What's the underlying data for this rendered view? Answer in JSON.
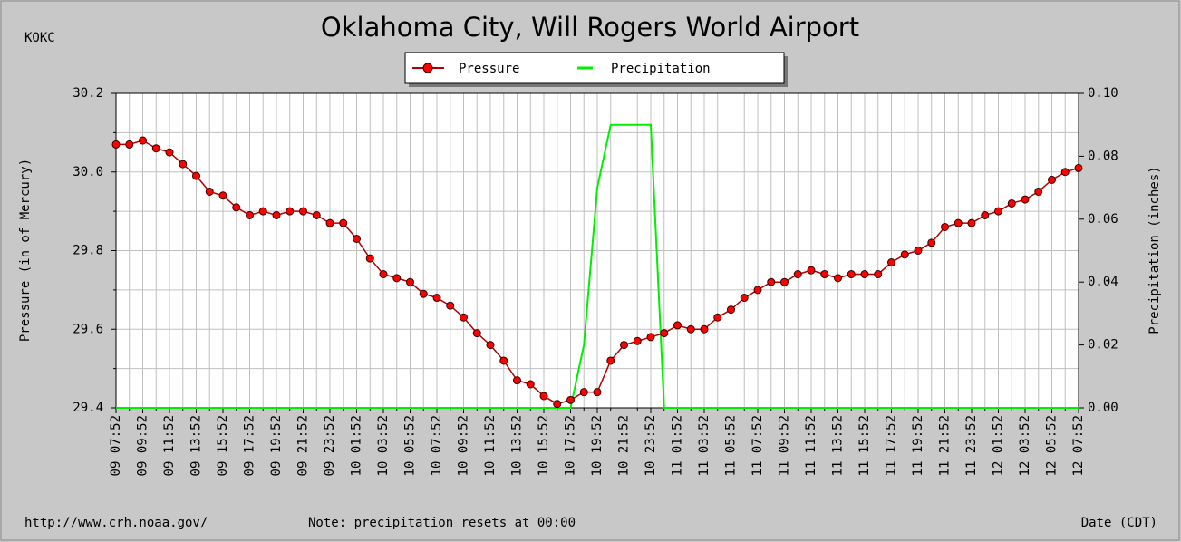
{
  "station": "KOKC",
  "footer": {
    "url": "http://www.crh.noaa.gov/",
    "note": "Note: precipitation resets at 00:00"
  },
  "chart_data": {
    "type": "line",
    "title": "Oklahoma City, Will Rogers World Airport",
    "x_label": "Date (CDT)",
    "y_label": "Pressure (in of Mercury)",
    "y2_label": "Precipitation (inches)",
    "categories": [
      "09 07:52",
      null,
      "09 09:52",
      null,
      "09 11:52",
      null,
      "09 13:52",
      null,
      "09 15:52",
      null,
      "09 17:52",
      null,
      "09 19:52",
      null,
      "09 21:52",
      null,
      "09 23:52",
      null,
      "10 01:52",
      null,
      "10 03:52",
      null,
      "10 05:52",
      null,
      "10 07:52",
      null,
      "10 09:52",
      null,
      "10 11:52",
      null,
      "10 13:52",
      null,
      "10 15:52",
      null,
      "10 17:52",
      null,
      "10 19:52",
      null,
      "10 21:52",
      null,
      "10 23:52",
      null,
      "11 01:52",
      null,
      "11 03:52",
      null,
      "11 05:52",
      null,
      "11 07:52",
      null,
      "11 09:52",
      null,
      "11 11:52",
      null,
      "11 13:52",
      null,
      "11 15:52",
      null,
      "11 17:52",
      null,
      "11 19:52",
      null,
      "11 21:52",
      null,
      "11 23:52",
      null,
      "12 01:52",
      null,
      "12 03:52",
      null,
      "12 05:52",
      null,
      "12 07:52"
    ],
    "series": [
      {
        "name": "Pressure",
        "color": "#ff0000",
        "line_color": "#b00000",
        "marker": true,
        "values": [
          30.07,
          30.07,
          30.08,
          30.06,
          30.05,
          30.02,
          29.99,
          29.95,
          29.94,
          29.91,
          29.89,
          29.9,
          29.89,
          29.9,
          29.9,
          29.89,
          29.87,
          29.87,
          29.83,
          29.78,
          29.74,
          29.73,
          29.72,
          29.69,
          29.68,
          29.66,
          29.63,
          29.59,
          29.56,
          29.52,
          29.47,
          29.46,
          29.43,
          29.41,
          29.42,
          29.44,
          29.44,
          29.52,
          29.56,
          29.57,
          29.58,
          29.59,
          29.61,
          29.6,
          29.6,
          29.63,
          29.65,
          29.68,
          29.7,
          29.72,
          29.72,
          29.74,
          29.75,
          29.74,
          29.73,
          29.74,
          29.74,
          29.74,
          29.77,
          29.79,
          29.8,
          29.82,
          29.86,
          29.87,
          29.87,
          29.89,
          29.9,
          29.92,
          29.93,
          29.95,
          29.98,
          30.0,
          30.01
        ]
      },
      {
        "name": "Precipitation",
        "color": "#00ee00",
        "axis": "y2",
        "marker": false,
        "values": [
          0,
          0,
          0,
          0,
          0,
          0,
          0,
          0,
          0,
          0,
          0,
          0,
          0,
          0,
          0,
          0,
          0,
          0,
          0,
          0,
          0,
          0,
          0,
          0,
          0,
          0,
          0,
          0,
          0,
          0,
          0,
          0,
          0,
          0,
          0,
          0.02,
          0.07,
          0.09,
          0.09,
          0.09,
          0.09,
          0,
          0,
          0,
          0,
          0,
          0,
          0,
          0,
          0,
          0,
          0,
          0,
          0,
          0,
          0,
          0,
          0,
          0,
          0,
          0,
          0,
          0,
          0,
          0,
          0,
          0,
          0,
          0,
          0,
          0,
          0,
          0
        ]
      }
    ],
    "ylim": [
      29.4,
      30.2
    ],
    "yticks": [
      29.4,
      29.6,
      29.8,
      {
        "value": 30,
        "label": "30.0"
      },
      30.2
    ],
    "yminor_ticks": [
      29.5,
      29.7,
      29.9,
      30.1
    ],
    "y2lim": [
      0,
      0.1
    ],
    "y2ticks": [
      {
        "value": 0,
        "label": "0.00"
      },
      {
        "value": 0.02,
        "label": "0.02"
      },
      {
        "value": 0.04,
        "label": "0.04"
      },
      {
        "value": 0.06,
        "label": "0.06"
      },
      {
        "value": 0.08,
        "label": "0.08"
      },
      {
        "value": 0.1,
        "label": "0.10"
      }
    ],
    "grid": true,
    "legend": "top"
  }
}
